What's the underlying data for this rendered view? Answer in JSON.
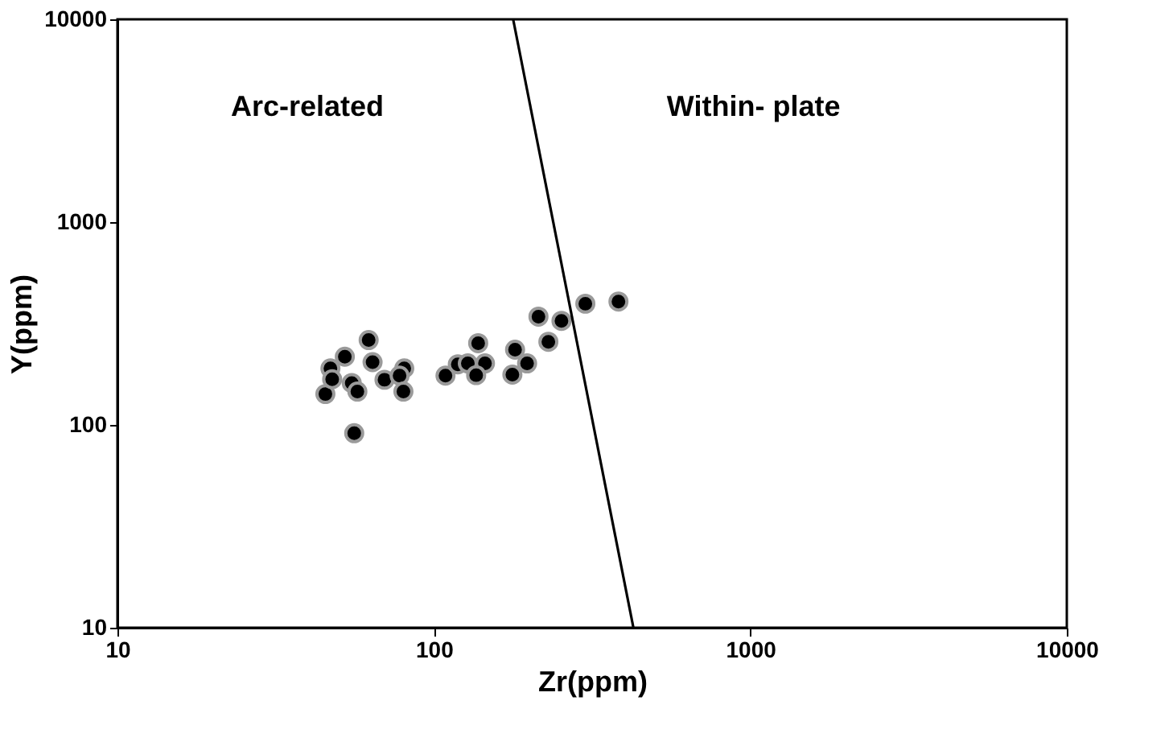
{
  "chart_data": {
    "type": "scatter",
    "xlabel": "Zr(ppm)",
    "ylabel": "Y(ppm)",
    "log": "xy",
    "xlim": [
      10,
      10000
    ],
    "ylim": [
      10,
      10000
    ],
    "xticks": [
      10,
      100,
      1000,
      10000
    ],
    "yticks": [
      10,
      100,
      1000,
      10000
    ],
    "grid": false,
    "marker": "circle",
    "annotations": [
      "Arc-related",
      "Within- plate"
    ],
    "series": [
      {
        "color": "#000000",
        "x": [
          45.4,
          47.1,
          47.7,
          52.3,
          55.0,
          57.3,
          62.2,
          64.0,
          56.0,
          69.8,
          80.6,
          77.9,
          80.1,
          108.8,
          119,
          128,
          138,
          145,
          136,
          180.5,
          197,
          177,
          214,
          230,
          253,
          301,
          383
        ],
        "values": [
          142,
          190,
          168,
          217,
          161,
          146,
          262,
          204,
          91,
          167,
          190,
          175,
          146,
          175,
          199,
          201,
          253,
          201,
          176,
          235,
          201,
          177,
          342,
          257,
          326,
          396,
          406
        ]
      },
      {
        "type": "line",
        "marker": "none",
        "color": "#000000",
        "x": [
          178,
          427
        ],
        "values": [
          10000,
          10
        ]
      }
    ]
  }
}
